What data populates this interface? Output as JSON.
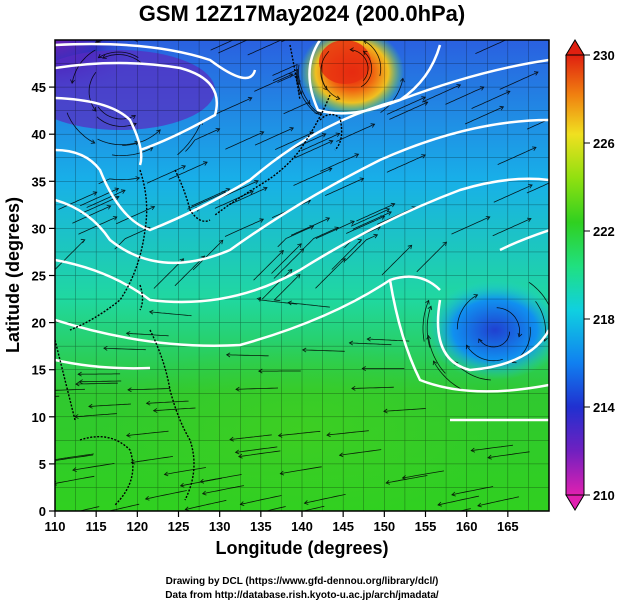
{
  "title": "GSM 12Z17May2024 (200.0hPa)",
  "x_axis": {
    "label": "Longitude (degrees)",
    "min": 110,
    "max": 170,
    "ticks": [
      "110",
      "115",
      "120",
      "125",
      "130",
      "135",
      "140",
      "145",
      "150",
      "155",
      "160",
      "165"
    ],
    "tick_values": [
      110,
      115,
      120,
      125,
      130,
      135,
      140,
      145,
      150,
      155,
      160,
      165
    ]
  },
  "y_axis": {
    "label": "Latitude (degrees)",
    "min": 0,
    "max": 50,
    "ticks": [
      "0",
      "5",
      "10",
      "15",
      "20",
      "25",
      "30",
      "35",
      "40",
      "45"
    ],
    "tick_values": [
      0,
      5,
      10,
      15,
      20,
      25,
      30,
      35,
      40,
      45
    ]
  },
  "colorbar": {
    "min": 210,
    "max": 230,
    "ticks": [
      "210",
      "214",
      "218",
      "222",
      "226",
      "230"
    ],
    "tick_values": [
      210,
      214,
      218,
      222,
      226,
      230
    ],
    "colors": [
      "#e020b0",
      "#7020c0",
      "#2030d0",
      "#1080f0",
      "#10d0e0",
      "#20e080",
      "#30d020",
      "#90e010",
      "#f0e020",
      "#f08010",
      "#e02010"
    ]
  },
  "credits": {
    "line1": "Drawing by DCL (https://www.gfd-dennou.org/library/dcl/)",
    "line2": "Data from http://database.rish.kyoto-u.ac.jp/arch/jmadata/"
  }
}
